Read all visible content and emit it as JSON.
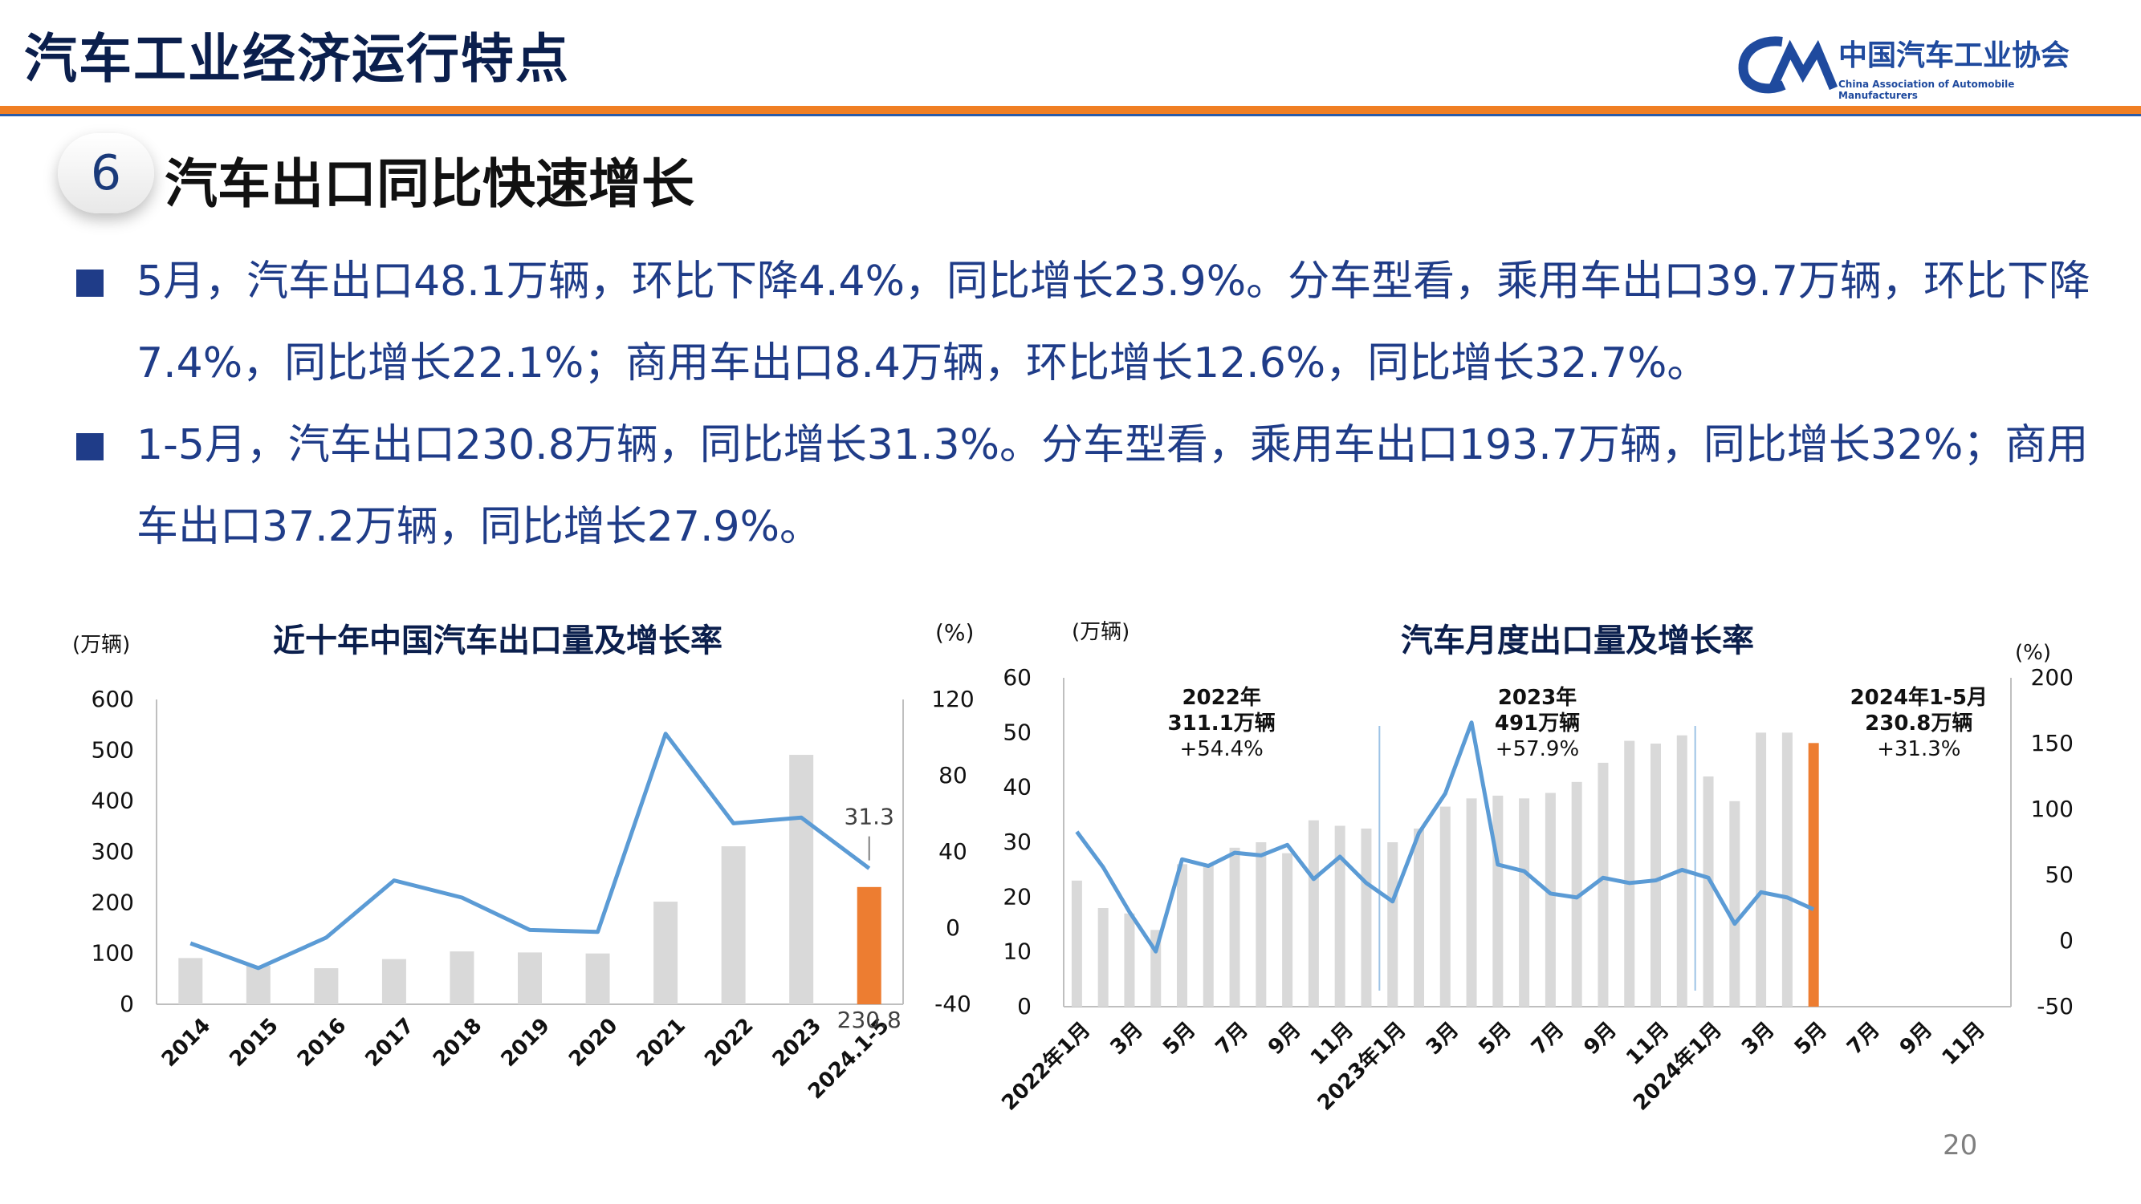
{
  "header": {
    "title": "汽车工业经济运行特点",
    "logo_cn": "中国汽车工业协会",
    "logo_en": "China Association of Automobile Manufacturers"
  },
  "section": {
    "number": "6",
    "title": "汽车出口同比快速增长"
  },
  "bullets": [
    "5月，汽车出口48.1万辆，环比下降4.4%，同比增长23.9%。分车型看，乘用车出口39.7万辆，环比下降7.4%，同比增长22.1%；商用车出口8.4万辆，环比增长12.6%，同比增长32.7%。",
    "1-5月，汽车出口230.8万辆，同比增长31.3%。分车型看，乘用车出口193.7万辆，同比增长32%；商用车出口37.2万辆，同比增长27.9%。"
  ],
  "page_number": "20",
  "colors": {
    "bar": "#d9d9d9",
    "highlight": "#ed7d31",
    "line": "#5b9bd5",
    "title": "#0b1f4d"
  },
  "chart_data": [
    {
      "type": "bar",
      "title": "近十年中国汽车出口量及增长率",
      "ylabel": "(万辆)",
      "y2label": "(%)",
      "categories": [
        "2014",
        "2015",
        "2016",
        "2017",
        "2018",
        "2019",
        "2020",
        "2021",
        "2022",
        "2023",
        "2024.1-5"
      ],
      "ylim": [
        0,
        600
      ],
      "yticks": [
        "600",
        "500",
        "400",
        "300",
        "200",
        "100",
        "0"
      ],
      "y2lim": [
        -40,
        120
      ],
      "y2ticks": [
        "120",
        "80",
        "40",
        "0",
        "-40"
      ],
      "series": [
        {
          "values": [
            91,
            76,
            71,
            89,
            104,
            102,
            100,
            202,
            311,
            491,
            230.8
          ]
        },
        {
          "values": [
            -8,
            -21,
            -5,
            25,
            16,
            -1,
            -2,
            102,
            55,
            58,
            31.3
          ]
        }
      ],
      "labels": {
        "bar_last": "230.8",
        "line_last": "31.3"
      }
    },
    {
      "type": "bar",
      "title": "汽车月度出口量及增长率",
      "ylabel": "(万辆)",
      "y2label": "(%)",
      "ylim": [
        0,
        60
      ],
      "yticks": [
        "60",
        "50",
        "40",
        "30",
        "20",
        "10",
        "0"
      ],
      "y2lim": [
        -50,
        200
      ],
      "y2ticks": [
        "200",
        "150",
        "100",
        "50",
        "0",
        "-50"
      ],
      "xticks": [
        "2022年1月",
        "3月",
        "5月",
        "7月",
        "9月",
        "11月",
        "2023年1月",
        "3月",
        "5月",
        "7月",
        "9月",
        "11月",
        "2024年1月",
        "3月",
        "5月",
        "7月",
        "9月",
        "11月"
      ],
      "series": [
        {
          "values": [
            23,
            18,
            17,
            14,
            26,
            26,
            29,
            30,
            28,
            34,
            33,
            32.5,
            30,
            32.5,
            36.5,
            38,
            38.5,
            38,
            39,
            41,
            44.5,
            48.5,
            48,
            49.5,
            42,
            37.5,
            50,
            50,
            48.1
          ]
        },
        {
          "values": [
            83,
            56,
            22,
            -8,
            62,
            57,
            67,
            65,
            73,
            47,
            64,
            44,
            30,
            82,
            112,
            166,
            58,
            53,
            36,
            33,
            48,
            44,
            46,
            54,
            48,
            13,
            37,
            33,
            24
          ]
        }
      ],
      "annotations": [
        {
          "title": "2022年",
          "volume": "311.1万辆",
          "growth": "+54.4%"
        },
        {
          "title": "2023年",
          "volume": "491万辆",
          "growth": "+57.9%"
        },
        {
          "title": "2024年1-5月",
          "volume": "230.8万辆",
          "growth": "+31.3%"
        }
      ]
    }
  ]
}
